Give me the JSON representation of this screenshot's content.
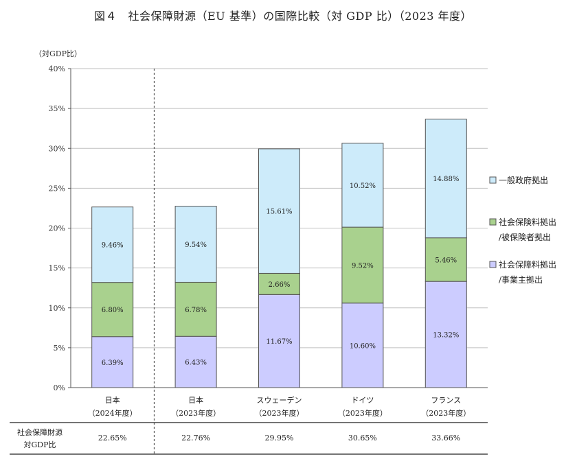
{
  "title": "図４　社会保障財源（EU 基準）の国際比較（対 GDP 比）（2023 年度）",
  "chart_data": {
    "type": "bar",
    "stacked": true,
    "ylabel": "（対GDP比）",
    "ylim": [
      0,
      40
    ],
    "yticks": [
      "0%",
      "5%",
      "10%",
      "15%",
      "20%",
      "25%",
      "30%",
      "35%",
      "40%"
    ],
    "grid": true,
    "legend_position": "right",
    "categories": [
      [
        "日本",
        "（2024年度）"
      ],
      [
        "日本",
        "（2023年度）"
      ],
      [
        "スウェーデン",
        "（2023年度）"
      ],
      [
        "ドイツ",
        "（2023年度）"
      ],
      [
        "フランス",
        "（2023年度）"
      ]
    ],
    "series": [
      {
        "name": [
          "社会保障料拠出",
          "/事業主拠出"
        ],
        "color": "#ccccff",
        "values": [
          6.39,
          6.43,
          11.67,
          10.6,
          13.32
        ],
        "labels": [
          "6.39%",
          "6.43%",
          "11.67%",
          "10.60%",
          "13.32%"
        ]
      },
      {
        "name": [
          "社会保険料拠出",
          "/被保険者拠出"
        ],
        "color": "#a9d18e",
        "values": [
          6.8,
          6.78,
          2.66,
          9.52,
          5.46
        ],
        "labels": [
          "6.80%",
          "6.78%",
          "2.66%",
          "9.52%",
          "5.46%"
        ]
      },
      {
        "name": [
          "一般政府拠出"
        ],
        "color": "#cdebfa",
        "values": [
          9.46,
          9.54,
          15.61,
          10.52,
          14.88
        ],
        "labels": [
          "9.46%",
          "9.54%",
          "15.61%",
          "10.52%",
          "14.88%"
        ]
      }
    ],
    "table": {
      "row_label": [
        "社会保障財源",
        "対GDP比"
      ],
      "values": [
        "22.65%",
        "22.76%",
        "29.95%",
        "30.65%",
        "33.66%"
      ]
    }
  }
}
